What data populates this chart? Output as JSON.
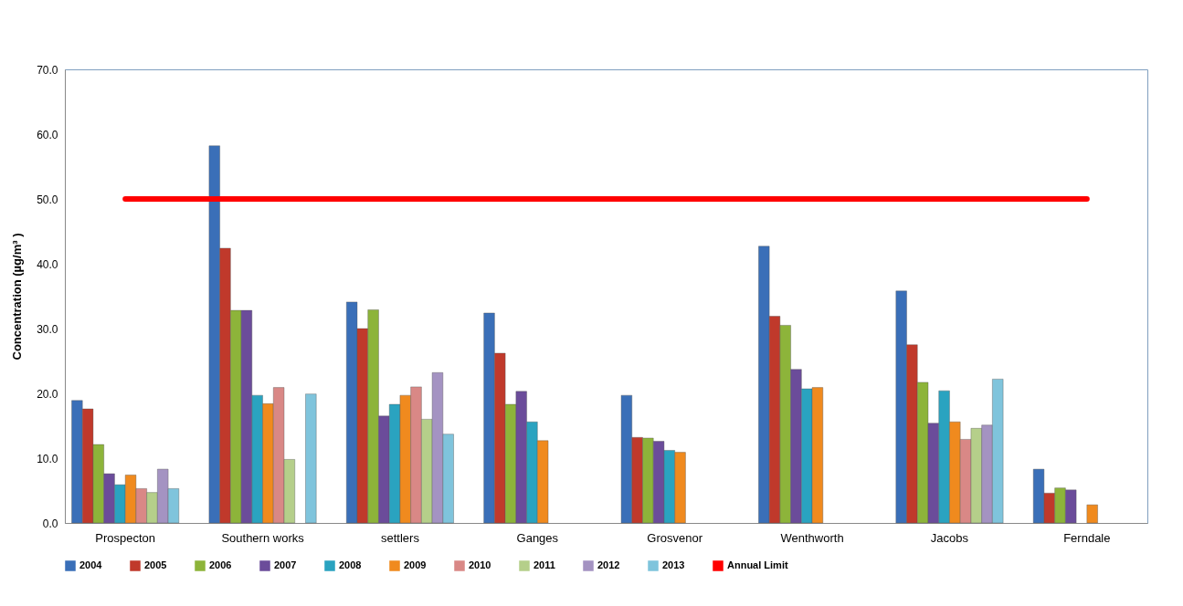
{
  "chart_data": {
    "type": "bar",
    "ylabel": "Concentration (µg/m³ )",
    "categories": [
      "Prospecton",
      "Southern works",
      "settlers",
      "Ganges",
      "Grosvenor",
      "Wenthworth",
      "Jacobs",
      "Ferndale"
    ],
    "series": [
      {
        "name": "2004",
        "color": "#3a6fb8",
        "values": [
          18.9,
          58.2,
          34.1,
          32.4,
          19.7,
          42.7,
          35.8,
          8.3
        ]
      },
      {
        "name": "2005",
        "color": "#c0392b",
        "values": [
          17.6,
          42.4,
          30.0,
          26.2,
          13.2,
          31.9,
          27.5,
          4.6
        ]
      },
      {
        "name": "2006",
        "color": "#8db43a",
        "values": [
          12.1,
          32.8,
          32.9,
          18.3,
          13.1,
          30.5,
          21.7,
          5.4
        ]
      },
      {
        "name": "2007",
        "color": "#6b4c9a",
        "values": [
          7.6,
          32.8,
          16.5,
          20.3,
          12.6,
          23.7,
          15.4,
          5.1
        ]
      },
      {
        "name": "2008",
        "color": "#2aa3c0",
        "values": [
          5.9,
          19.7,
          18.3,
          15.6,
          11.2,
          20.7,
          20.4,
          null
        ]
      },
      {
        "name": "2009",
        "color": "#f08a1e",
        "values": [
          7.4,
          18.4,
          19.7,
          12.7,
          10.9,
          20.9,
          15.6,
          2.8
        ]
      },
      {
        "name": "2010",
        "color": "#d98886",
        "values": [
          5.3,
          20.9,
          21.0,
          null,
          null,
          null,
          12.9,
          null
        ]
      },
      {
        "name": "2011",
        "color": "#b5cf8a",
        "values": [
          4.7,
          9.8,
          16.0,
          null,
          null,
          null,
          14.6,
          null
        ]
      },
      {
        "name": "2012",
        "color": "#a493c2",
        "values": [
          8.3,
          null,
          23.2,
          null,
          null,
          null,
          15.1,
          null
        ]
      },
      {
        "name": "2013",
        "color": "#7fc4dc",
        "values": [
          5.3,
          19.9,
          13.7,
          null,
          null,
          null,
          22.2,
          null
        ]
      },
      {
        "name": "Annual Limit",
        "type": "line",
        "color": "#ff0000",
        "values": [
          50,
          50,
          50,
          50,
          50,
          50,
          50,
          50
        ]
      }
    ],
    "ylim": [
      0,
      70
    ],
    "yticks": [
      {
        "value": 0,
        "label": "0.0"
      },
      {
        "value": 10,
        "label": "10.0"
      },
      {
        "value": 20,
        "label": "20.0"
      },
      {
        "value": 30,
        "label": "30.0"
      },
      {
        "value": 40,
        "label": "40.0"
      },
      {
        "value": 50,
        "label": "50.0"
      },
      {
        "value": 60,
        "label": "60.0"
      },
      {
        "value": 70,
        "label": "70.0"
      }
    ],
    "grid": false,
    "legend": "bottom"
  }
}
